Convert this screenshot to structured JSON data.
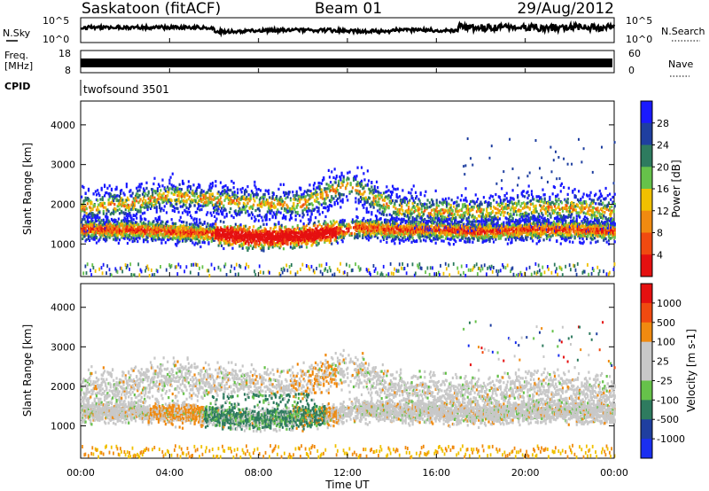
{
  "header": {
    "station": "Saskatoon (fitACF)",
    "beam": "Beam 01",
    "date": "29/Aug/2012"
  },
  "noise_panel": {
    "left_label": "N.Sky",
    "left_ticks": [
      "10^5",
      "10^0"
    ],
    "right_label": "N.Search",
    "right_ticks": [
      "10^5",
      "10^0"
    ]
  },
  "freq_panel": {
    "left_label_line1": "Freq.",
    "left_label_line2": "[MHz]",
    "left_ticks": [
      "18",
      "8"
    ],
    "right_label": "Nave",
    "right_ticks": [
      "60",
      "0"
    ],
    "freq_level_mhz": 10.5
  },
  "cpid_panel": {
    "label": "CPID",
    "program": "twofsound 3501"
  },
  "colors": {
    "power": [
      "#1a1aff",
      "#1f3fa0",
      "#2e7b5f",
      "#66c24a",
      "#f0c000",
      "#f08a10",
      "#f04a10",
      "#e51010"
    ],
    "velocity": [
      "#e51010",
      "#f04a10",
      "#f08a10",
      "#c8c8c8",
      "#c8c8c8",
      "#66c24a",
      "#2e7b5f",
      "#1f3fa0",
      "#1a2ff0"
    ]
  },
  "chart_data": [
    {
      "type": "heatmap",
      "title": "Power",
      "ylabel": "Slant Range [km]",
      "xlabel": "Time UT",
      "ylim": [
        180,
        4600
      ],
      "xlim": [
        0,
        24
      ],
      "y_ticks": [
        "4000",
        "3000",
        "2000",
        "1000"
      ],
      "colorbar_label": "Power [dB]",
      "colorbar_ticks": [
        "28",
        "24",
        "20",
        "16",
        "12",
        "8",
        "4"
      ],
      "scatter_bands": [
        {
          "name": "main",
          "x": [
            0,
            2,
            4,
            6,
            8,
            10,
            11.5,
            12.5,
            14,
            16,
            18,
            20,
            22,
            24
          ],
          "center": [
            1350,
            1350,
            1300,
            1250,
            1150,
            1200,
            1300,
            1400,
            1350,
            1350,
            1300,
            1350,
            1350,
            1300
          ]
        },
        {
          "name": "upper",
          "x": [
            0,
            2,
            4,
            6,
            8,
            10,
            12,
            14,
            16,
            18,
            20,
            22,
            24
          ],
          "center": [
            1900,
            2000,
            2200,
            2100,
            2000,
            2000,
            2500,
            1900,
            1800,
            1800,
            1900,
            1900,
            1800
          ]
        }
      ]
    },
    {
      "type": "heatmap",
      "title": "Velocity",
      "ylabel": "Slant Range [km]",
      "xlabel": "Time UT",
      "ylim": [
        180,
        4600
      ],
      "xlim": [
        0,
        24
      ],
      "y_ticks": [
        "4000",
        "3000",
        "2000",
        "1000"
      ],
      "colorbar_label": "Velocity [m s-1]",
      "colorbar_ticks": [
        "1000",
        "500",
        "100",
        "25",
        "-25",
        "-100",
        "-500",
        "-1000"
      ]
    }
  ],
  "time_axis": {
    "ticks": [
      "00:00",
      "04:00",
      "08:00",
      "12:00",
      "16:00",
      "20:00",
      "00:00"
    ],
    "label": "Time UT"
  }
}
